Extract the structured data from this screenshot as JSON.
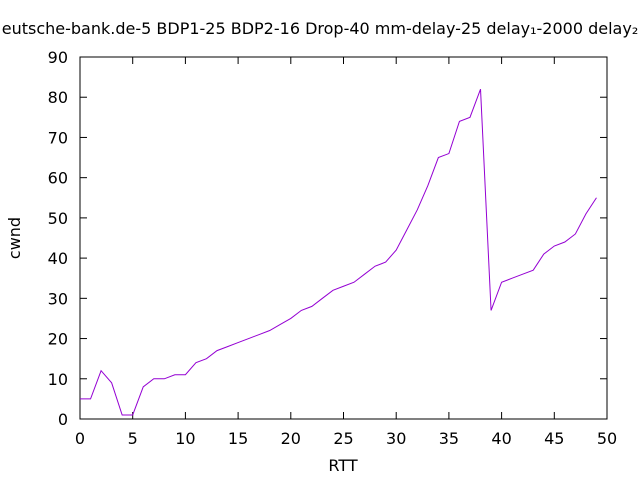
{
  "chart_data": {
    "type": "line",
    "title": "eutsche-bank.de-5 BDP1-25 BDP2-16 Drop-40 mm-delay-25 delay₁-2000 delay₂",
    "xlabel": "RTT",
    "ylabel": "cwnd",
    "xlim": [
      0,
      50
    ],
    "ylim": [
      0,
      90
    ],
    "xticks": [
      0,
      5,
      10,
      15,
      20,
      25,
      30,
      35,
      40,
      45,
      50
    ],
    "yticks": [
      0,
      10,
      20,
      30,
      40,
      50,
      60,
      70,
      80,
      90
    ],
    "grid": false,
    "legend": "none",
    "colors": {
      "series": "#9400d3",
      "axis": "#000000",
      "background": "#ffffff"
    },
    "series": [
      {
        "x": [
          0,
          1,
          2,
          3,
          4,
          5,
          6,
          7,
          8,
          9,
          10,
          11,
          12,
          13,
          14,
          15,
          16,
          17,
          18,
          19,
          20,
          21,
          22,
          23,
          24,
          25,
          26,
          27,
          28,
          29,
          30,
          31,
          32,
          33,
          34,
          35,
          36,
          37,
          38,
          39,
          40,
          41,
          42,
          43,
          44,
          45,
          46,
          47,
          48,
          49
        ],
        "values": [
          5,
          5,
          12,
          9,
          1,
          1,
          8,
          10,
          10,
          11,
          11,
          14,
          15,
          17,
          18,
          19,
          20,
          21,
          22,
          23.5,
          25,
          27,
          28,
          30,
          32,
          33,
          34,
          36,
          38,
          39,
          42,
          47,
          52,
          58,
          65,
          66,
          74,
          75,
          82,
          27,
          34,
          35,
          36,
          37,
          41,
          43,
          44,
          46,
          51,
          55
        ]
      }
    ]
  }
}
